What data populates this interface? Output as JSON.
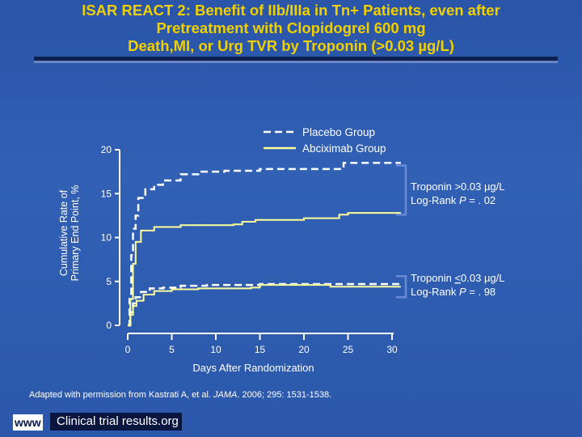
{
  "title_lines": [
    "ISAR REACT 2: Benefit of IIb/IIIa in Tn+ Patients, even after",
    "Pretreatment with Clopidogrel 600 mg",
    "Death,MI, or Urg TVR by Troponin (>0.03 µg/L)"
  ],
  "colors": {
    "title": "#f2d000",
    "placebo": "#ffffff",
    "abciximab": "#ffff99",
    "bracket": "#6a8ad8"
  },
  "chart_data": {
    "type": "line",
    "xlabel": "Days After Randomization",
    "ylabel_lines": [
      "Cumulative Rate of",
      "Primary End Point, %"
    ],
    "xlim": [
      0,
      30
    ],
    "ylim": [
      0,
      20
    ],
    "xticks": [
      0,
      5,
      10,
      15,
      20,
      25,
      30
    ],
    "yticks": [
      0,
      5,
      10,
      15,
      20
    ],
    "legend": {
      "position": "top-right",
      "entries": [
        {
          "label": "Placebo Group",
          "style": "dashed"
        },
        {
          "label": "Abciximab Group",
          "style": "solid"
        }
      ]
    },
    "series": [
      {
        "name": "Placebo Group",
        "subgroup": "Troponin >0.03 µg/L",
        "style": "dashed",
        "points": [
          [
            0,
            0
          ],
          [
            0.2,
            3
          ],
          [
            0.4,
            8
          ],
          [
            0.6,
            11
          ],
          [
            0.9,
            12.5
          ],
          [
            1.2,
            14.5
          ],
          [
            2,
            15.5
          ],
          [
            3,
            16
          ],
          [
            4,
            16.5
          ],
          [
            6,
            17.2
          ],
          [
            8,
            17.5
          ],
          [
            11,
            17.6
          ],
          [
            15,
            17.8
          ],
          [
            24,
            17.8
          ],
          [
            24.5,
            18.5
          ],
          [
            31,
            18.5
          ]
        ]
      },
      {
        "name": "Abciximab Group",
        "subgroup": "Troponin >0.03 µg/L",
        "style": "solid",
        "points": [
          [
            0,
            0
          ],
          [
            0.3,
            3
          ],
          [
            0.6,
            7
          ],
          [
            0.9,
            9.5
          ],
          [
            1.5,
            10.8
          ],
          [
            3,
            11.2
          ],
          [
            6,
            11.4
          ],
          [
            12,
            11.5
          ],
          [
            13,
            11.8
          ],
          [
            14.5,
            12
          ],
          [
            20,
            12.2
          ],
          [
            24,
            12.6
          ],
          [
            25,
            12.8
          ],
          [
            31,
            12.8
          ]
        ]
      },
      {
        "name": "Placebo Group",
        "subgroup": "Troponin ≤0.03 µg/L",
        "style": "dashed",
        "points": [
          [
            0,
            0
          ],
          [
            0.3,
            1.5
          ],
          [
            0.6,
            2.5
          ],
          [
            0.9,
            3.2
          ],
          [
            1.5,
            3.8
          ],
          [
            2.5,
            4.2
          ],
          [
            4,
            4.3
          ],
          [
            6,
            4.5
          ],
          [
            9,
            4.6
          ],
          [
            15,
            4.7
          ],
          [
            31,
            4.7
          ]
        ]
      },
      {
        "name": "Abciximab Group",
        "subgroup": "Troponin ≤0.03 µg/L",
        "style": "solid",
        "points": [
          [
            0,
            0
          ],
          [
            0.3,
            1.2
          ],
          [
            0.6,
            2.2
          ],
          [
            1,
            2.8
          ],
          [
            1.8,
            3.5
          ],
          [
            3,
            3.9
          ],
          [
            5,
            4.1
          ],
          [
            8,
            4.2
          ],
          [
            14,
            4.3
          ],
          [
            15,
            4.6
          ],
          [
            22,
            4.6
          ],
          [
            23,
            4.4
          ],
          [
            31,
            4.4
          ]
        ]
      }
    ],
    "annotations": [
      {
        "line1": "Troponin >0.03 µg/L",
        "line2_prefix": "Log-Rank ",
        "line2_p": "P",
        "line2_value": " = . 02"
      },
      {
        "line1_prefix": "Troponin ",
        "line1_underlined": "<",
        "line1_rest": "0.03 µg/L",
        "line2_prefix": "Log-Rank ",
        "line2_p": "P",
        "line2_value": " = . 98"
      }
    ]
  },
  "footnote": {
    "prefix": "Adapted with permission from Kastrati A, et al. ",
    "journal": "JAMA",
    "rest": ". 2006; 295: 1531-1538."
  },
  "brand": {
    "www": "www",
    "name": "Clinical trial results",
    "org": ".org"
  }
}
